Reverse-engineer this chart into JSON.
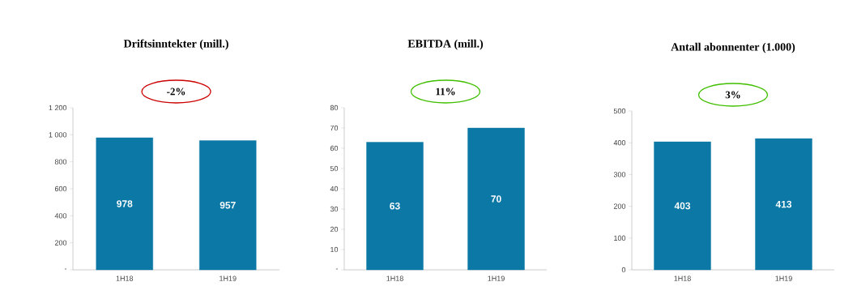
{
  "chart_data": [
    {
      "type": "bar",
      "title": "Driftsinntekter (mill.)",
      "categories": [
        "1H18",
        "1H19"
      ],
      "values": [
        978,
        957
      ],
      "color": "#0b78a5",
      "ylim": [
        0,
        1200
      ],
      "yticks": [
        {
          "value": 0,
          "label": "-"
        },
        200,
        400,
        600,
        800,
        {
          "value": 1000,
          "label": "1 000"
        },
        {
          "value": 1200,
          "label": "1 200"
        }
      ],
      "data_labels": true,
      "grid": false,
      "annotations": [
        "-2%"
      ]
    },
    {
      "type": "bar",
      "title": "EBITDA (mill.)",
      "categories": [
        "1H18",
        "1H19"
      ],
      "values": [
        63,
        70
      ],
      "color": "#0b78a5",
      "ylim": [
        0,
        80
      ],
      "yticks": [
        {
          "value": 0,
          "label": "-"
        },
        10,
        20,
        30,
        40,
        50,
        60,
        70,
        80
      ],
      "data_labels": true,
      "grid": false,
      "annotations": [
        "11%"
      ]
    },
    {
      "type": "bar",
      "title": "Antall abonnenter (1.000)",
      "categories": [
        "1H18",
        "1H19"
      ],
      "values": [
        403,
        413
      ],
      "color": "#0b78a5",
      "ylim": [
        0,
        500
      ],
      "yticks": [
        0,
        100,
        200,
        300,
        400,
        500
      ],
      "data_labels": true,
      "grid": false,
      "annotations": [
        "3%"
      ]
    }
  ]
}
